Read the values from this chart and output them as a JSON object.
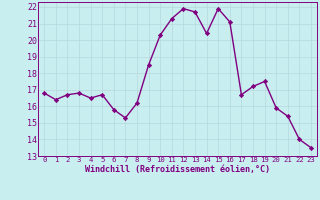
{
  "x": [
    0,
    1,
    2,
    3,
    4,
    5,
    6,
    7,
    8,
    9,
    10,
    11,
    12,
    13,
    14,
    15,
    16,
    17,
    18,
    19,
    20,
    21,
    22,
    23
  ],
  "y": [
    16.8,
    16.4,
    16.7,
    16.8,
    16.5,
    16.7,
    15.8,
    15.3,
    16.2,
    18.5,
    20.3,
    21.3,
    21.9,
    21.7,
    20.4,
    21.9,
    21.1,
    16.7,
    17.2,
    17.5,
    15.9,
    15.4,
    14.0,
    13.5
  ],
  "line_color": "#800080",
  "marker": "D",
  "marker_size": 2.2,
  "bg_color": "#c8eef0",
  "grid_color": "#b8d8dc",
  "xlabel": "Windchill (Refroidissement éolien,°C)",
  "xlim_min": -0.5,
  "xlim_max": 23.5,
  "ylim_min": 13,
  "ylim_max": 22.3,
  "xticks": [
    0,
    1,
    2,
    3,
    4,
    5,
    6,
    7,
    8,
    9,
    10,
    11,
    12,
    13,
    14,
    15,
    16,
    17,
    18,
    19,
    20,
    21,
    22,
    23
  ],
  "yticks": [
    13,
    14,
    15,
    16,
    17,
    18,
    19,
    20,
    21,
    22
  ],
  "tick_color": "#800080",
  "axis_color": "#800080",
  "line_width": 1.0,
  "xlabel_fontsize": 6.0,
  "xtick_fontsize": 5.2,
  "ytick_fontsize": 6.0
}
